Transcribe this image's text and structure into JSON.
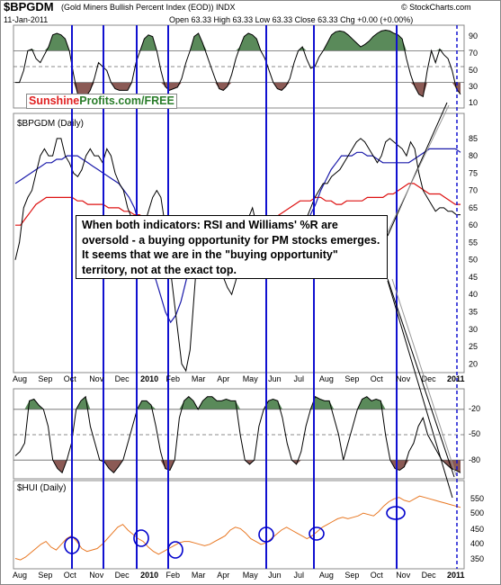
{
  "header": {
    "symbol": "$BPGDM",
    "description": "(Gold Miners Bullish Percent Index (EOD)) INDX",
    "date": "11-Jan-2011",
    "ohlc": "Open 63.33  High 63.33  Low 63.33  Close 63.33  Chg +0.00 (+0.00%)",
    "copyright": "© StockCharts.com"
  },
  "logo": {
    "part1": "Sunshine",
    "part2": "Profits.com/FREE"
  },
  "annotation": "When both indicators: RSI and Williams' %R are oversold - a buying opportunity for PM stocks emerges. It seems that we are in the \"buying opportunity\" territory, not at the exact top.",
  "colors": {
    "overbought_fill": "#5a8a5a",
    "oversold_fill": "#8b5a55",
    "vertical_line": "#1010d0",
    "ma_fast": "#1a1aaa",
    "ma_slow": "#dd1111",
    "hui_line": "#e87722",
    "circle": "#0000cc"
  },
  "chart_data": [
    {
      "type": "line",
      "panel": "RSI",
      "ytick_labels": [
        "90",
        "70",
        "50",
        "30",
        "10"
      ],
      "ylim": [
        0,
        100
      ],
      "levels": [
        70,
        50,
        30
      ],
      "values": [
        30,
        30,
        45,
        70,
        72,
        60,
        55,
        65,
        75,
        90,
        92,
        90,
        85,
        70,
        40,
        15,
        10,
        12,
        20,
        35,
        55,
        50,
        45,
        30,
        22,
        20,
        20,
        20,
        30,
        55,
        70,
        85,
        90,
        88,
        70,
        45,
        25,
        20,
        22,
        24,
        35,
        55,
        70,
        88,
        92,
        80,
        65,
        50,
        35,
        22,
        20,
        25,
        40,
        60,
        75,
        88,
        92,
        90,
        85,
        70,
        60,
        45,
        30,
        22,
        20,
        25,
        35,
        55,
        70,
        75,
        60,
        48,
        50,
        62,
        70,
        80,
        90,
        94,
        95,
        94,
        90,
        85,
        80,
        75,
        78,
        82,
        88,
        92,
        95,
        96,
        95,
        92,
        90,
        85,
        60,
        40,
        25,
        15,
        12,
        45,
        70,
        55,
        72,
        65,
        60,
        45,
        22,
        15
      ]
    },
    {
      "type": "line",
      "panel": "price",
      "title": "$BPGDM (Daily)",
      "ytick_labels": [
        "85",
        "80",
        "75",
        "70",
        "65",
        "60",
        "55",
        "50",
        "45",
        "40",
        "35",
        "30",
        "25",
        "20"
      ],
      "ylim": [
        18,
        86
      ],
      "series": [
        {
          "values": [
            50,
            55,
            65,
            68,
            70,
            75,
            80,
            82,
            80,
            80,
            85,
            85,
            80,
            78,
            75,
            74,
            76,
            80,
            82,
            80,
            80,
            78,
            82,
            80,
            75,
            72,
            70,
            65,
            62,
            60,
            56,
            60,
            64,
            68,
            70,
            68,
            60,
            50,
            40,
            30,
            20,
            18,
            24,
            40,
            56,
            62,
            62,
            60,
            55,
            50,
            45,
            42,
            40,
            44,
            50,
            58,
            62,
            65,
            60,
            55,
            55,
            58,
            60,
            62,
            60,
            58,
            55,
            56,
            58,
            60,
            62,
            65,
            68,
            70,
            72,
            72,
            74,
            75,
            76,
            78,
            80,
            82,
            84,
            85,
            84,
            82,
            80,
            78,
            80,
            84,
            85,
            84,
            83,
            82,
            80,
            84,
            82,
            75,
            70,
            68,
            66,
            64,
            65,
            65,
            64,
            64,
            63,
            63
          ]
        },
        {
          "values": [
            72,
            73,
            74,
            75,
            76,
            77,
            78,
            78,
            79,
            79,
            80,
            80,
            80,
            79,
            78,
            77,
            76,
            75,
            74,
            73,
            72,
            70,
            68,
            65,
            60,
            55,
            50,
            45,
            40,
            35,
            32,
            34,
            38,
            44,
            50,
            54,
            56,
            57,
            57,
            56,
            55,
            54,
            53,
            52,
            52,
            53,
            55,
            57,
            58,
            58,
            57,
            56,
            55,
            55,
            56,
            58,
            60,
            63,
            66,
            70,
            73,
            76,
            78,
            80,
            80,
            80,
            81,
            81,
            80,
            80,
            79,
            78,
            78,
            78,
            78,
            78,
            78,
            79,
            80,
            81,
            82,
            82,
            82,
            82,
            82,
            82,
            81
          ]
        },
        {
          "values": [
            60,
            60,
            62,
            64,
            66,
            67,
            68,
            68,
            68,
            68,
            68,
            68,
            67,
            67,
            66,
            66,
            66,
            66,
            65,
            65,
            65,
            64,
            64,
            63,
            63,
            62,
            61,
            61,
            60,
            60,
            59,
            59,
            58,
            58,
            57,
            57,
            56,
            56,
            56,
            56,
            55,
            55,
            55,
            56,
            56,
            57,
            58,
            59,
            60,
            61,
            62,
            63,
            64,
            65,
            66,
            67,
            67,
            67,
            68,
            68,
            67,
            67,
            66,
            66,
            67,
            67,
            67,
            67,
            68,
            68,
            68,
            68,
            69,
            69,
            70,
            71,
            72,
            72,
            71,
            70,
            69,
            69,
            69,
            68,
            67,
            66,
            66
          ]
        }
      ]
    },
    {
      "type": "line",
      "panel": "Williams %R",
      "ytick_labels": [
        "-20",
        "-50",
        "-80"
      ],
      "ylim": [
        -100,
        0
      ],
      "levels": [
        -20,
        -50,
        -80
      ],
      "values": [
        -75,
        -70,
        -60,
        -10,
        -8,
        -15,
        -20,
        -40,
        -80,
        -90,
        -95,
        -80,
        -60,
        -20,
        -10,
        -5,
        -40,
        -60,
        -80,
        -82,
        -90,
        -95,
        -88,
        -80,
        -60,
        -40,
        -20,
        -10,
        -10,
        -15,
        -40,
        -70,
        -90,
        -92,
        -80,
        -30,
        -10,
        -5,
        -10,
        -20,
        -10,
        -5,
        -5,
        -10,
        -10,
        -8,
        -10,
        -10,
        -50,
        -80,
        -85,
        -80,
        -40,
        -20,
        -10,
        -8,
        -10,
        -30,
        -60,
        -80,
        -85,
        -70,
        -40,
        -20,
        -5,
        -8,
        -10,
        -10,
        -30,
        -50,
        -80,
        -60,
        -40,
        -20,
        -8,
        -5,
        -10,
        -8,
        -10,
        -50,
        -80,
        -90,
        -92,
        -88,
        -70,
        -60,
        -40,
        -30,
        -50,
        -60,
        -70,
        -80,
        -85,
        -90,
        -92,
        -95
      ]
    },
    {
      "type": "line",
      "panel": "HUI",
      "title": "$HUI (Daily)",
      "ytick_labels": [
        "550",
        "500",
        "450",
        "400",
        "350"
      ],
      "ylim": [
        330,
        590
      ],
      "values": [
        360,
        355,
        365,
        380,
        395,
        410,
        420,
        400,
        390,
        410,
        430,
        440,
        420,
        395,
        385,
        390,
        395,
        410,
        430,
        450,
        470,
        480,
        460,
        445,
        430,
        420,
        400,
        385,
        375,
        385,
        395,
        405,
        415,
        420,
        420,
        415,
        410,
        405,
        410,
        420,
        430,
        440,
        460,
        470,
        465,
        450,
        430,
        420,
        410,
        415,
        430,
        445,
        460,
        470,
        460,
        450,
        440,
        430,
        440,
        455,
        470,
        480,
        490,
        500,
        505,
        500,
        505,
        510,
        520,
        515,
        510,
        525,
        545,
        560,
        570,
        575,
        565,
        560,
        570,
        580,
        575,
        570,
        565,
        560,
        555,
        550,
        545,
        540
      ]
    }
  ],
  "x_axis": {
    "labels": [
      "Aug",
      "Sep",
      "Oct",
      "Nov",
      "Dec",
      "2010",
      "Feb",
      "Mar",
      "Apr",
      "May",
      "Jun",
      "Jul",
      "Aug",
      "Sep",
      "Oct",
      "Nov",
      "Dec",
      "2011"
    ]
  }
}
